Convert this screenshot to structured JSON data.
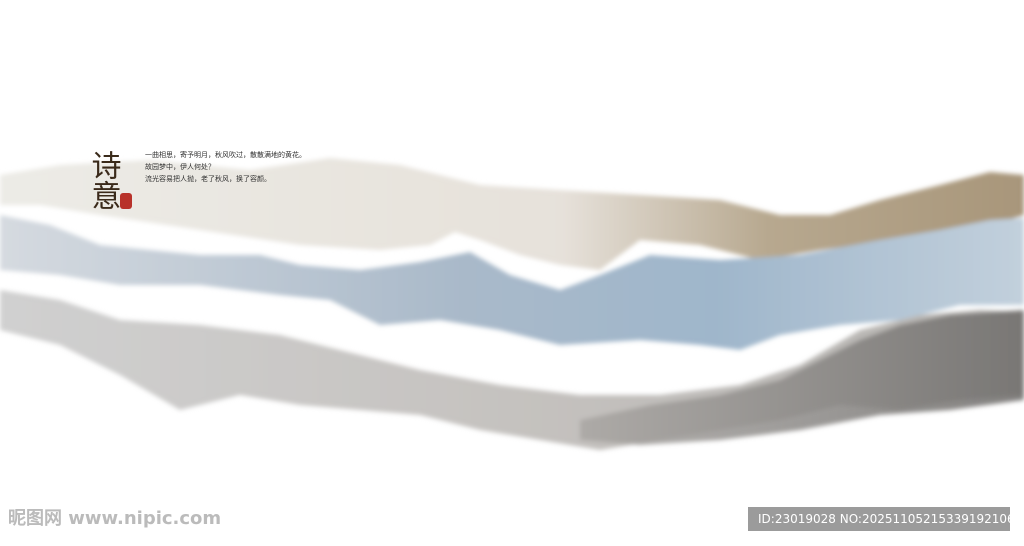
{
  "artwork": {
    "title": "诗意",
    "poem": [
      "一曲相思，寄予明月，秋风吹过，散散满地的黄花。",
      "故园梦中，伊人何处？",
      "流光容易把人抛，老了秋风，换了容颜。"
    ]
  },
  "watermark": {
    "site": "昵图网 www.nipic.com",
    "id": "ID:23019028 NO:20251105215339192106"
  }
}
